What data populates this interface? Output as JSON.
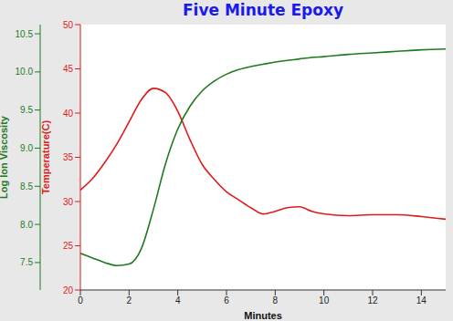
{
  "chart_data": {
    "type": "line",
    "title": "Five Minute Epoxy",
    "x_label": "Minutes",
    "y_label": "Temperature(C)",
    "y2_label": "Log Ion Viscosity",
    "x": [
      0,
      0.5,
      1,
      1.5,
      2,
      2.5,
      3,
      3.5,
      4,
      4.5,
      5,
      5.5,
      6,
      6.5,
      7,
      7.5,
      8,
      8.5,
      9,
      9.5,
      10,
      11,
      12,
      13,
      14,
      15
    ],
    "xlim": [
      0,
      15
    ],
    "xticks": [
      0,
      2,
      4,
      6,
      8,
      10,
      12,
      14
    ],
    "ylim": [
      20,
      50
    ],
    "yticks": [
      20,
      25,
      30,
      35,
      40,
      45,
      50
    ],
    "y2lim": [
      7.14,
      10.62
    ],
    "y2ticks": [
      7.5,
      {
        "value": 8,
        "label": "8.0"
      },
      8.5,
      {
        "value": 9,
        "label": "9.0"
      },
      9.5,
      {
        "value": 10,
        "label": "10.0"
      },
      10.5
    ],
    "series": [
      {
        "color": "#e01b1b",
        "values": [
          31.3,
          32.6,
          34.4,
          36.5,
          39,
          41.5,
          42.8,
          42.3,
          40.2,
          37,
          34.2,
          32.5,
          31.1,
          30.2,
          29.3,
          28.6,
          28.9,
          29.3,
          29.4,
          28.9,
          28.6,
          28.4,
          28.5,
          28.5,
          28.3,
          28.0
        ]
      },
      {
        "color": "#1f7a1f",
        "axis": "y2",
        "values": [
          7.62,
          7.56,
          7.5,
          7.46,
          7.48,
          7.68,
          8.2,
          8.8,
          9.25,
          9.55,
          9.75,
          9.88,
          9.97,
          10.03,
          10.07,
          10.1,
          10.13,
          10.15,
          10.17,
          10.19,
          10.2,
          10.23,
          10.25,
          10.27,
          10.29,
          10.3
        ]
      }
    ]
  }
}
